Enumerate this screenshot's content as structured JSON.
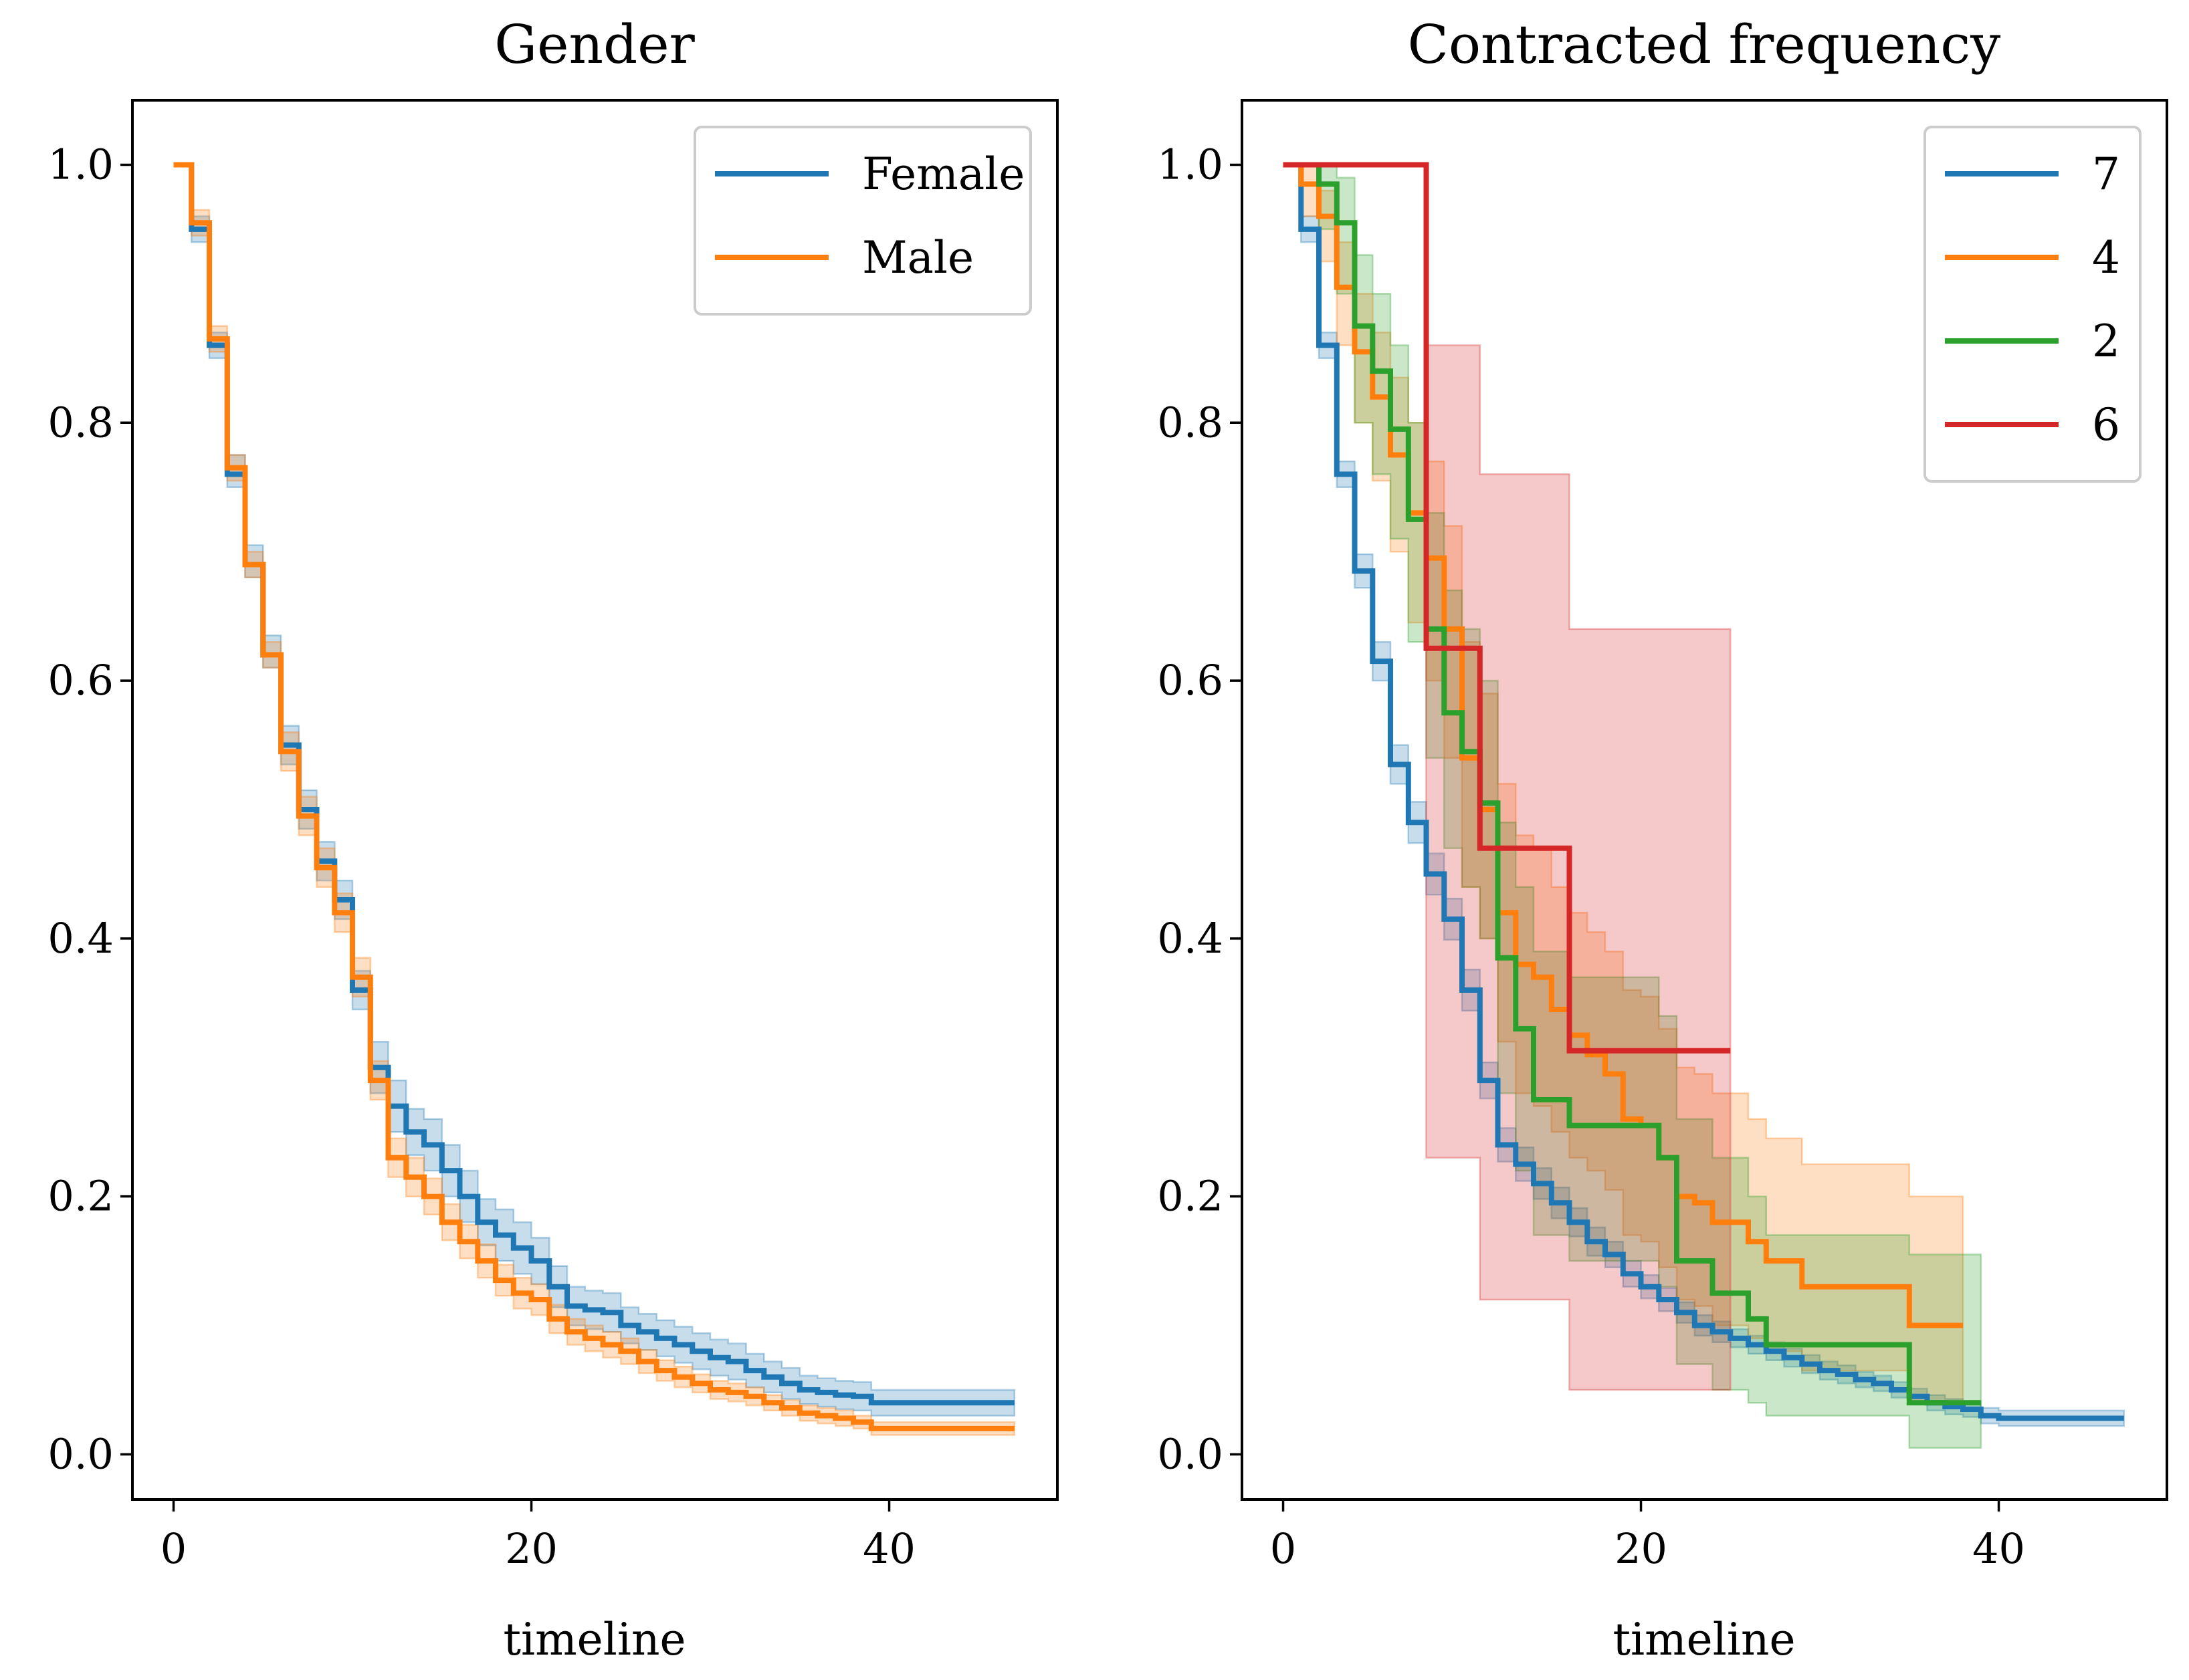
{
  "chart_data": [
    {
      "type": "line",
      "subtype": "step",
      "title": "Gender",
      "xlabel": "timeline",
      "ylabel": "",
      "xlim": [
        -2.3,
        49.4
      ],
      "ylim": [
        -0.035,
        1.05
      ],
      "xticks": [
        "0",
        "20",
        "40"
      ],
      "yticks": [
        "0.0",
        "0.2",
        "0.4",
        "0.6",
        "0.8",
        "1.0"
      ],
      "legend_position": "top-right",
      "series": [
        {
          "name": "Female",
          "color": "#1f77b4",
          "x": [
            0,
            1,
            2,
            3,
            4,
            5,
            6,
            7,
            8,
            9,
            10,
            11,
            12,
            13,
            14,
            15,
            16,
            17,
            18,
            19,
            20,
            21,
            22,
            23,
            24,
            25,
            26,
            27,
            28,
            29,
            30,
            31,
            32,
            33,
            34,
            35,
            36,
            37,
            38,
            39,
            47
          ],
          "y": [
            1.0,
            0.95,
            0.86,
            0.76,
            0.69,
            0.62,
            0.55,
            0.5,
            0.46,
            0.43,
            0.36,
            0.3,
            0.27,
            0.25,
            0.24,
            0.22,
            0.2,
            0.18,
            0.17,
            0.16,
            0.15,
            0.13,
            0.115,
            0.112,
            0.11,
            0.1,
            0.095,
            0.09,
            0.085,
            0.08,
            0.075,
            0.072,
            0.065,
            0.06,
            0.055,
            0.05,
            0.048,
            0.046,
            0.045,
            0.04,
            0.04
          ],
          "ci_lower": [
            1.0,
            0.94,
            0.85,
            0.75,
            0.68,
            0.61,
            0.535,
            0.485,
            0.445,
            0.415,
            0.345,
            0.28,
            0.25,
            0.232,
            0.22,
            0.2,
            0.18,
            0.162,
            0.15,
            0.14,
            0.132,
            0.114,
            0.1,
            0.097,
            0.095,
            0.086,
            0.081,
            0.076,
            0.071,
            0.066,
            0.061,
            0.058,
            0.052,
            0.048,
            0.043,
            0.039,
            0.037,
            0.035,
            0.034,
            0.03,
            0.03
          ],
          "ci_upper": [
            1.0,
            0.96,
            0.87,
            0.775,
            0.705,
            0.635,
            0.565,
            0.515,
            0.475,
            0.445,
            0.375,
            0.32,
            0.29,
            0.268,
            0.26,
            0.24,
            0.22,
            0.198,
            0.19,
            0.18,
            0.168,
            0.146,
            0.13,
            0.127,
            0.125,
            0.114,
            0.109,
            0.104,
            0.099,
            0.094,
            0.089,
            0.086,
            0.078,
            0.072,
            0.067,
            0.061,
            0.059,
            0.057,
            0.056,
            0.05,
            0.05
          ]
        },
        {
          "name": "Male",
          "color": "#ff7f0e",
          "x": [
            0,
            1,
            2,
            3,
            4,
            5,
            6,
            7,
            8,
            9,
            10,
            11,
            12,
            13,
            14,
            15,
            16,
            17,
            18,
            19,
            20,
            21,
            22,
            23,
            24,
            25,
            26,
            27,
            28,
            29,
            30,
            31,
            32,
            33,
            34,
            35,
            36,
            37,
            38,
            39,
            47
          ],
          "y": [
            1.0,
            0.955,
            0.865,
            0.765,
            0.69,
            0.62,
            0.545,
            0.495,
            0.455,
            0.42,
            0.37,
            0.29,
            0.23,
            0.215,
            0.2,
            0.18,
            0.165,
            0.15,
            0.135,
            0.125,
            0.12,
            0.105,
            0.095,
            0.09,
            0.085,
            0.08,
            0.072,
            0.065,
            0.06,
            0.055,
            0.05,
            0.048,
            0.045,
            0.04,
            0.036,
            0.032,
            0.03,
            0.028,
            0.025,
            0.02,
            0.02
          ],
          "ci_lower": [
            1.0,
            0.945,
            0.855,
            0.755,
            0.68,
            0.61,
            0.53,
            0.48,
            0.44,
            0.405,
            0.355,
            0.275,
            0.215,
            0.2,
            0.186,
            0.166,
            0.152,
            0.137,
            0.123,
            0.113,
            0.108,
            0.094,
            0.085,
            0.08,
            0.075,
            0.07,
            0.063,
            0.057,
            0.052,
            0.048,
            0.043,
            0.041,
            0.038,
            0.034,
            0.03,
            0.026,
            0.024,
            0.022,
            0.02,
            0.015,
            0.015
          ],
          "ci_upper": [
            1.0,
            0.965,
            0.875,
            0.775,
            0.7,
            0.63,
            0.56,
            0.51,
            0.47,
            0.435,
            0.385,
            0.305,
            0.245,
            0.23,
            0.214,
            0.194,
            0.178,
            0.163,
            0.147,
            0.137,
            0.132,
            0.116,
            0.105,
            0.1,
            0.095,
            0.09,
            0.081,
            0.073,
            0.068,
            0.062,
            0.057,
            0.055,
            0.052,
            0.046,
            0.042,
            0.038,
            0.036,
            0.034,
            0.03,
            0.025,
            0.025
          ]
        }
      ]
    },
    {
      "type": "line",
      "subtype": "step",
      "title": "Contracted frequency",
      "xlabel": "timeline",
      "ylabel": "",
      "xlim": [
        -2.3,
        49.4
      ],
      "ylim": [
        -0.035,
        1.05
      ],
      "xticks": [
        "0",
        "20",
        "40"
      ],
      "yticks": [
        "0.0",
        "0.2",
        "0.4",
        "0.6",
        "0.8",
        "1.0"
      ],
      "legend_position": "top-right",
      "series": [
        {
          "name": "7",
          "color": "#1f77b4",
          "x": [
            0,
            1,
            2,
            3,
            4,
            5,
            6,
            7,
            8,
            9,
            10,
            11,
            12,
            13,
            14,
            15,
            16,
            17,
            18,
            19,
            20,
            21,
            22,
            23,
            24,
            25,
            26,
            27,
            28,
            29,
            30,
            31,
            32,
            33,
            34,
            35,
            36,
            37,
            38,
            39,
            40,
            47
          ],
          "y": [
            1.0,
            0.95,
            0.86,
            0.76,
            0.685,
            0.615,
            0.535,
            0.49,
            0.45,
            0.415,
            0.36,
            0.29,
            0.24,
            0.225,
            0.21,
            0.195,
            0.18,
            0.165,
            0.155,
            0.14,
            0.13,
            0.12,
            0.11,
            0.1,
            0.095,
            0.09,
            0.085,
            0.08,
            0.075,
            0.07,
            0.065,
            0.062,
            0.058,
            0.055,
            0.05,
            0.045,
            0.04,
            0.037,
            0.035,
            0.03,
            0.028,
            0.028
          ],
          "ci_lower": [
            1.0,
            0.94,
            0.85,
            0.75,
            0.672,
            0.6,
            0.52,
            0.474,
            0.434,
            0.399,
            0.344,
            0.276,
            0.227,
            0.212,
            0.198,
            0.183,
            0.169,
            0.154,
            0.145,
            0.13,
            0.121,
            0.111,
            0.102,
            0.092,
            0.087,
            0.083,
            0.078,
            0.073,
            0.068,
            0.063,
            0.058,
            0.055,
            0.052,
            0.049,
            0.044,
            0.039,
            0.034,
            0.031,
            0.029,
            0.024,
            0.022,
            0.022
          ],
          "ci_upper": [
            1.0,
            0.96,
            0.87,
            0.77,
            0.698,
            0.63,
            0.55,
            0.506,
            0.466,
            0.431,
            0.376,
            0.304,
            0.253,
            0.238,
            0.222,
            0.207,
            0.191,
            0.176,
            0.165,
            0.15,
            0.139,
            0.129,
            0.118,
            0.108,
            0.103,
            0.097,
            0.092,
            0.087,
            0.082,
            0.077,
            0.072,
            0.069,
            0.064,
            0.061,
            0.056,
            0.051,
            0.046,
            0.043,
            0.041,
            0.036,
            0.034,
            0.034
          ]
        },
        {
          "name": "4",
          "color": "#ff7f0e",
          "x": [
            0,
            1,
            2,
            3,
            4,
            5,
            6,
            7,
            8,
            9,
            10,
            11,
            12,
            13,
            14,
            15,
            16,
            17,
            18,
            19,
            20,
            21,
            22,
            23,
            24,
            25,
            26,
            27,
            28,
            29,
            30,
            31,
            32,
            33,
            34,
            35,
            36,
            37,
            38
          ],
          "y": [
            1.0,
            0.985,
            0.96,
            0.905,
            0.855,
            0.82,
            0.775,
            0.73,
            0.695,
            0.64,
            0.54,
            0.5,
            0.42,
            0.38,
            0.37,
            0.345,
            0.325,
            0.31,
            0.295,
            0.26,
            0.255,
            0.23,
            0.2,
            0.195,
            0.18,
            0.18,
            0.165,
            0.15,
            0.15,
            0.13,
            0.13,
            0.13,
            0.13,
            0.13,
            0.13,
            0.1,
            0.1,
            0.1,
            0.1
          ],
          "ci_lower": [
            1.0,
            0.96,
            0.925,
            0.86,
            0.8,
            0.755,
            0.7,
            0.645,
            0.6,
            0.54,
            0.44,
            0.4,
            0.32,
            0.28,
            0.27,
            0.25,
            0.23,
            0.22,
            0.205,
            0.17,
            0.165,
            0.145,
            0.12,
            0.115,
            0.1,
            0.1,
            0.09,
            0.08,
            0.08,
            0.065,
            0.065,
            0.065,
            0.065,
            0.065,
            0.065,
            0.04,
            0.04,
            0.04,
            0.04
          ],
          "ci_upper": [
            1.0,
            1.0,
            0.98,
            0.94,
            0.9,
            0.87,
            0.835,
            0.8,
            0.77,
            0.72,
            0.63,
            0.59,
            0.52,
            0.48,
            0.47,
            0.44,
            0.42,
            0.405,
            0.39,
            0.36,
            0.355,
            0.33,
            0.3,
            0.295,
            0.28,
            0.28,
            0.26,
            0.245,
            0.245,
            0.225,
            0.225,
            0.225,
            0.225,
            0.225,
            0.225,
            0.2,
            0.2,
            0.2,
            0.2
          ]
        },
        {
          "name": "2",
          "color": "#2ca02c",
          "x": [
            0,
            1,
            2,
            3,
            4,
            5,
            6,
            7,
            8,
            9,
            10,
            11,
            12,
            13,
            14,
            15,
            16,
            17,
            18,
            19,
            20,
            21,
            22,
            23,
            24,
            25,
            26,
            27,
            28,
            29,
            30,
            31,
            32,
            33,
            34,
            35,
            36,
            37,
            38,
            39
          ],
          "y": [
            1.0,
            1.0,
            0.985,
            0.955,
            0.875,
            0.84,
            0.795,
            0.725,
            0.64,
            0.575,
            0.545,
            0.505,
            0.385,
            0.33,
            0.275,
            0.275,
            0.255,
            0.255,
            0.255,
            0.255,
            0.255,
            0.23,
            0.15,
            0.15,
            0.125,
            0.125,
            0.105,
            0.085,
            0.085,
            0.085,
            0.085,
            0.085,
            0.085,
            0.085,
            0.085,
            0.04,
            0.04,
            0.04,
            0.04,
            0.04
          ],
          "ci_lower": [
            1.0,
            1.0,
            0.95,
            0.9,
            0.8,
            0.76,
            0.71,
            0.63,
            0.54,
            0.47,
            0.44,
            0.4,
            0.28,
            0.22,
            0.17,
            0.17,
            0.15,
            0.15,
            0.15,
            0.15,
            0.15,
            0.13,
            0.07,
            0.07,
            0.05,
            0.05,
            0.04,
            0.03,
            0.03,
            0.03,
            0.03,
            0.03,
            0.03,
            0.03,
            0.03,
            0.005,
            0.005,
            0.005,
            0.005,
            0.005
          ],
          "ci_upper": [
            1.0,
            1.0,
            1.0,
            0.99,
            0.93,
            0.9,
            0.86,
            0.8,
            0.73,
            0.67,
            0.64,
            0.6,
            0.49,
            0.44,
            0.39,
            0.39,
            0.37,
            0.37,
            0.37,
            0.37,
            0.37,
            0.34,
            0.26,
            0.26,
            0.23,
            0.23,
            0.2,
            0.17,
            0.17,
            0.17,
            0.17,
            0.17,
            0.17,
            0.17,
            0.17,
            0.155,
            0.155,
            0.155,
            0.155,
            0.155
          ]
        },
        {
          "name": "6",
          "color": "#d62728",
          "x": [
            0,
            8,
            11,
            16,
            25
          ],
          "y": [
            1.0,
            0.625,
            0.47,
            0.313,
            0.313
          ],
          "ci_lower": [
            1.0,
            0.23,
            0.12,
            0.05,
            0.05
          ],
          "ci_upper": [
            1.0,
            0.86,
            0.76,
            0.64,
            0.64
          ]
        }
      ]
    }
  ]
}
